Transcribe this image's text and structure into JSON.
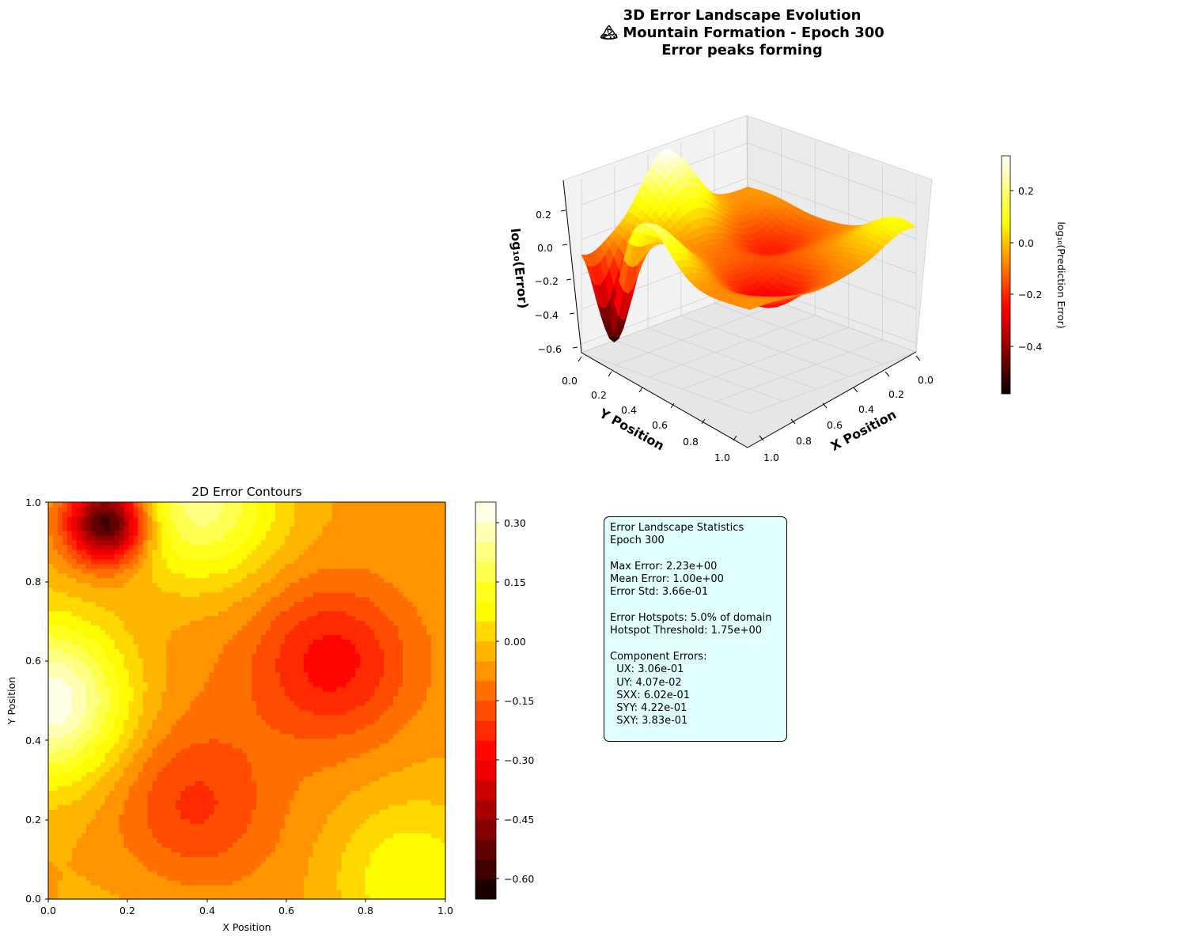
{
  "chart_data": [
    {
      "type": "surface",
      "title": "3D Error Landscape Evolution\n🏔 Mountain Formation - Epoch 300\nError peaks forming",
      "title_lines": [
        "3D Error Landscape Evolution",
        "🏔 Mountain Formation - Epoch 300",
        "Error peaks forming"
      ],
      "xlabel": "X Position",
      "ylabel": "Y Position",
      "zlabel": "log₁₀(Error)",
      "xlim": [
        0,
        1
      ],
      "ylim": [
        0,
        1
      ],
      "zlim": [
        -0.65,
        0.35
      ],
      "x_ticks": [
        "0.0",
        "0.2",
        "0.4",
        "0.6",
        "0.8",
        "1.0"
      ],
      "y_ticks": [
        "0.0",
        "0.2",
        "0.4",
        "0.6",
        "0.8",
        "1.0"
      ],
      "z_ticks": [
        "0.2",
        "0.0",
        "−0.2",
        "−0.4",
        "−0.6"
      ],
      "colormap": "hot",
      "colorbar": {
        "label": "log₁₀(Prediction Error)",
        "range": [
          -0.58,
          0.34
        ],
        "ticks": [
          "0.2",
          "0.0",
          "−0.2",
          "−0.4"
        ]
      }
    },
    {
      "type": "contour",
      "title": "2D Error Contours",
      "xlabel": "X Position",
      "ylabel": "Y Position",
      "xlim": [
        0,
        1
      ],
      "ylim": [
        0,
        1
      ],
      "x_ticks": [
        "0.0",
        "0.2",
        "0.4",
        "0.6",
        "0.8",
        "1.0"
      ],
      "y_ticks": [
        "0.0",
        "0.2",
        "0.4",
        "0.6",
        "0.8",
        "1.0"
      ],
      "colormap": "hot",
      "levels": [
        -0.65,
        -0.6,
        -0.55,
        -0.5,
        -0.45,
        -0.4,
        -0.35,
        -0.3,
        -0.25,
        -0.2,
        -0.15,
        -0.1,
        -0.05,
        0.0,
        0.05,
        0.1,
        0.15,
        0.2,
        0.25,
        0.3,
        0.35
      ],
      "features": [
        {
          "kind": "min",
          "x": 0.15,
          "y": 0.95,
          "value": -0.63
        },
        {
          "kind": "min",
          "x": 0.72,
          "y": 0.6,
          "value": -0.3
        },
        {
          "kind": "min",
          "x": 0.36,
          "y": 0.23,
          "value": -0.22
        },
        {
          "kind": "max",
          "x": 0.01,
          "y": 0.5,
          "value": 0.34
        },
        {
          "kind": "max",
          "x": 0.38,
          "y": 0.99,
          "value": 0.22
        },
        {
          "kind": "max",
          "x": 0.9,
          "y": 0.05,
          "value": 0.12
        }
      ],
      "colorbar": {
        "ticks": [
          "0.30",
          "0.15",
          "0.00",
          "−0.15",
          "−0.30",
          "−0.45",
          "−0.60"
        ],
        "range": [
          -0.65,
          0.35
        ]
      }
    }
  ],
  "stats": {
    "lines": [
      "Error Landscape Statistics",
      "Epoch 300",
      "",
      "Max Error: 2.23e+00",
      "Mean Error: 1.00e+00",
      "Error Std: 3.66e-01",
      "",
      "Error Hotspots: 5.0% of domain",
      "Hotspot Threshold: 1.75e+00",
      "",
      "Component Errors:",
      "  UX: 3.06e-01",
      "  UY: 4.07e-02",
      "  SXX: 6.02e-01",
      "  SYY: 4.22e-01",
      "  SXY: 3.83e-01"
    ]
  }
}
